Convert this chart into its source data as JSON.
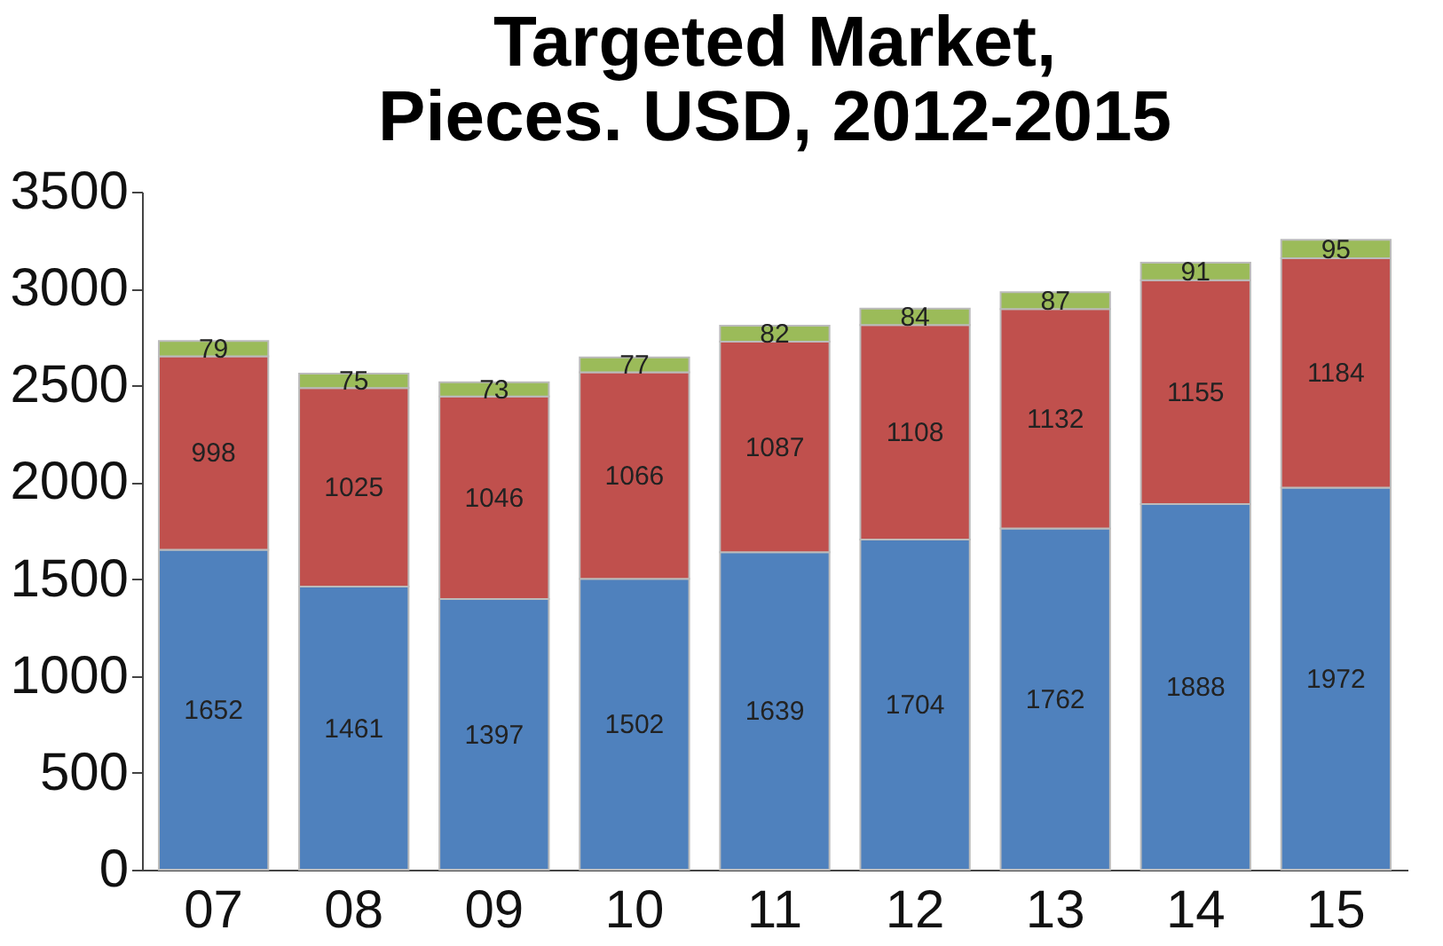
{
  "chart_data": {
    "type": "bar",
    "title": [
      "Targeted Market,",
      "   Pieces. USD, 2012-2015"
    ],
    "categories": [
      "07",
      "08",
      "09",
      "10",
      "11",
      "12",
      "13",
      "14",
      "15"
    ],
    "stacked": true,
    "data_labels": true,
    "grid": false,
    "ylim": [
      0,
      3500
    ],
    "yticks": [
      0,
      500,
      1000,
      1500,
      2000,
      2500,
      3000,
      3500
    ],
    "series": [
      {
        "color": "#4f81bd",
        "values": [
          1652,
          1461,
          1397,
          1502,
          1639,
          1704,
          1762,
          1888,
          1972
        ]
      },
      {
        "color": "#c0504d",
        "values": [
          998,
          1025,
          1046,
          1066,
          1087,
          1108,
          1132,
          1155,
          1184
        ]
      },
      {
        "color": "#9bbb59",
        "values": [
          79,
          75,
          73,
          77,
          82,
          84,
          87,
          91,
          95
        ]
      }
    ]
  }
}
